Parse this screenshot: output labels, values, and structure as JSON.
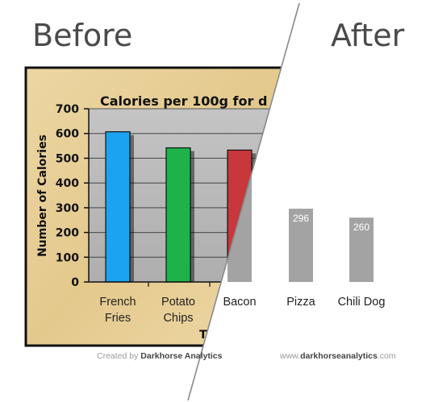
{
  "labels": {
    "before": "Before",
    "after": "After",
    "credit_before_prefix": "Created by",
    "credit_before_name": "Darkhorse Analytics",
    "credit_after_prefix": "www.",
    "credit_after_name": "darkhorseanalytics",
    "credit_after_suffix": ".com"
  },
  "chart_data": {
    "type": "bar",
    "title": "Calories per 100g for d",
    "xlabel_fragment": "T",
    "ylabel": "Number of Calories",
    "ylim": [
      0,
      700
    ],
    "yticks": [
      0,
      100,
      200,
      300,
      400,
      500,
      600,
      700
    ],
    "categories": [
      {
        "lines": [
          "French",
          "Fries"
        ]
      },
      {
        "lines": [
          "Potato",
          "Chips"
        ]
      },
      {
        "lines": [
          "Bacon"
        ]
      },
      {
        "lines": [
          "Pizza"
        ]
      },
      {
        "lines": [
          "Chili Dog"
        ]
      }
    ],
    "values": [
      607,
      542,
      533,
      296,
      260
    ],
    "value_labels": [
      "",
      "",
      "",
      "296",
      "260"
    ],
    "before_colors": [
      "#1aa3f0",
      "#1fb24a",
      "#c8373b"
    ],
    "after_color": "#a3a3a3",
    "panel_background": "#e8cf96",
    "plot_background": "#b9b9b9"
  }
}
